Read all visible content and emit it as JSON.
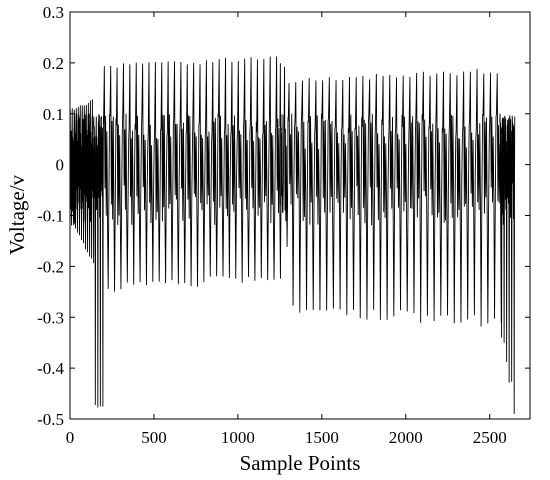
{
  "chart_data": {
    "type": "line",
    "xlabel": "Sample Points",
    "ylabel": "Voltage/v",
    "xlim": [
      0,
      2740
    ],
    "ylim": [
      -0.5,
      0.3
    ],
    "xticks": [
      0,
      500,
      1000,
      1500,
      2000,
      2500
    ],
    "xtick_labels": [
      "0",
      "500",
      "1000",
      "1500",
      "2000",
      "2500"
    ],
    "yticks": [
      -0.5,
      -0.4,
      -0.3,
      -0.2,
      -0.1,
      0,
      0.1,
      0.2,
      0.3
    ],
    "ytick_labels": [
      "-0.5",
      "-0.4",
      "-0.3",
      "-0.2",
      "-0.1",
      "0",
      "0.1",
      "0.2",
      "0.3"
    ],
    "grid": false,
    "line_color": "#000000",
    "series": [
      {
        "segments": [
          {
            "x_start": 0,
            "x_end": 140,
            "cycle": 12,
            "peak_start": 0.11,
            "peak_end": 0.13,
            "trough_start": -0.12,
            "trough_end": -0.2
          },
          {
            "x_start": 140,
            "x_end": 200,
            "cycle": 15,
            "peak_start": 0.1,
            "peak_end": 0.1,
            "trough_start": -0.5,
            "trough_end": -0.5
          },
          {
            "x_start": 200,
            "x_end": 1250,
            "cycle": 38,
            "peak_start": 0.2,
            "peak_end": 0.215,
            "trough_start": -0.25,
            "trough_end": -0.23
          },
          {
            "x_start": 1250,
            "x_end": 1300,
            "cycle": 25,
            "peak_start": 0.21,
            "peak_end": 0.18,
            "trough_start": -0.1,
            "trough_end": -0.25
          },
          {
            "x_start": 1300,
            "x_end": 2560,
            "cycle": 40,
            "peak_start": 0.17,
            "peak_end": 0.19,
            "trough_start": -0.3,
            "trough_end": -0.32
          },
          {
            "x_start": 2560,
            "x_end": 2640,
            "cycle": 15,
            "peak_start": 0.1,
            "peak_end": 0.08,
            "trough_start": -0.35,
            "trough_end": -0.5
          }
        ],
        "inner_band": [
          -0.12,
          0.1
        ]
      }
    ]
  }
}
